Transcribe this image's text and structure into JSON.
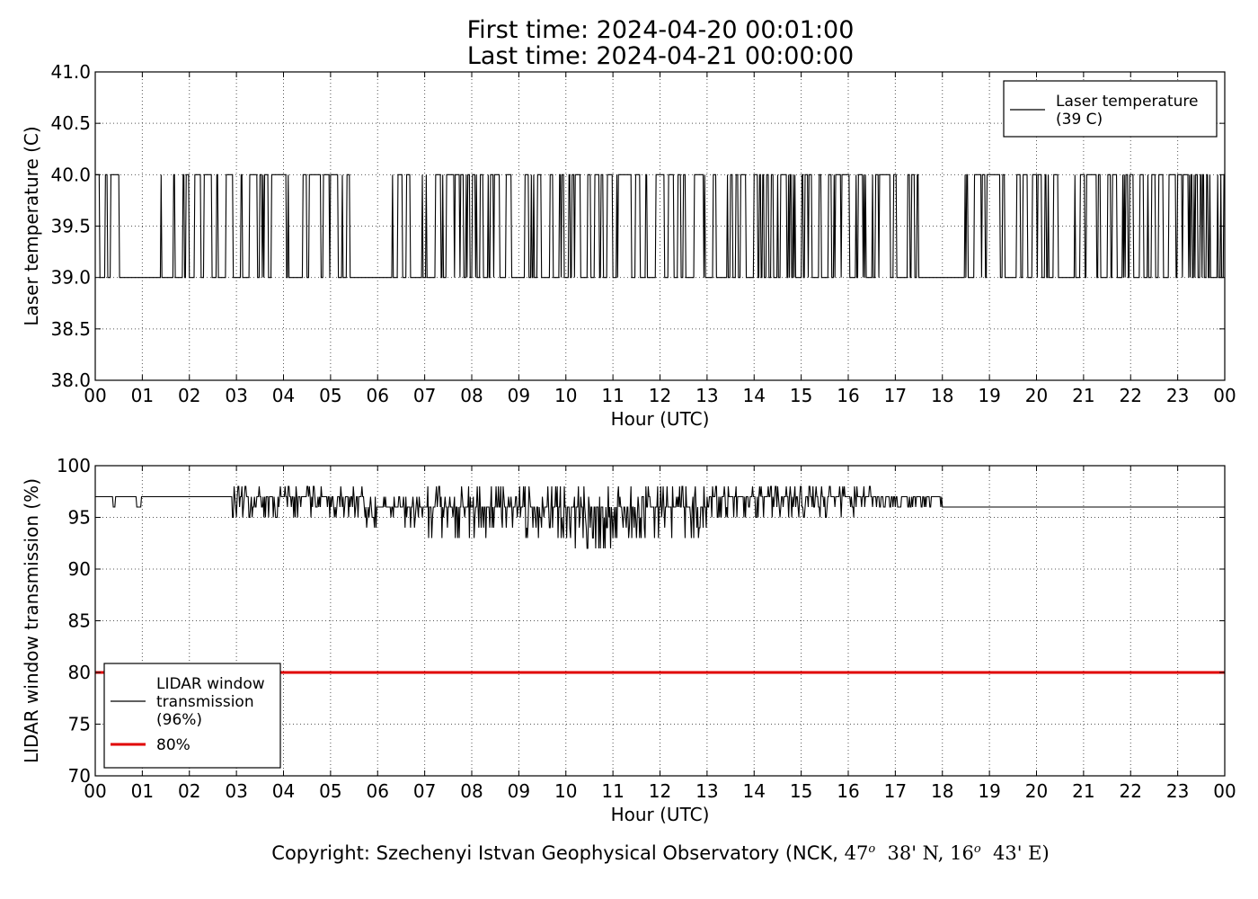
{
  "header": {
    "first_time": "First time: 2024-04-20 00:01:00",
    "last_time": "Last time: 2024-04-21 00:00:00"
  },
  "footer": {
    "copyright_prefix": "Copyright: Szechenyi Istvan Geophysical Observatory (NCK,",
    "lat_deg": "47",
    "lat_min": "38' N,",
    "lon_deg": "16",
    "lon_min": "43' E)",
    "degree_symbol": "o"
  },
  "colors": {
    "line": "#000000",
    "threshold": "#e00000",
    "grid": "#555555"
  },
  "chart_data": [
    {
      "type": "line",
      "xlabel": "Hour (UTC)",
      "ylabel": "Laser temperature (C)",
      "xlim": [
        0,
        24
      ],
      "ylim": [
        38.0,
        41.0
      ],
      "x_tick_labels": [
        "00",
        "01",
        "02",
        "03",
        "04",
        "05",
        "06",
        "07",
        "08",
        "09",
        "10",
        "11",
        "12",
        "13",
        "14",
        "15",
        "16",
        "17",
        "18",
        "19",
        "20",
        "21",
        "22",
        "23",
        "00"
      ],
      "y_ticks": [
        38.0,
        38.5,
        39.0,
        39.5,
        40.0,
        40.5,
        41.0
      ],
      "y_tick_labels": [
        "38.0",
        "38.5",
        "39.0",
        "39.5",
        "40.0",
        "40.5",
        "41.0"
      ],
      "grid": true,
      "legend_position": "top-right",
      "series": [
        {
          "name": "Laser temperature\n(39 C)",
          "legend_lines": [
            "Laser temperature",
            "(39 C)"
          ],
          "color": "#000000",
          "pattern": "alternating 39.0 / 40.0 C",
          "low": 39.0,
          "high": 40.0,
          "flat_low_intervals_hours": [
            [
              0.5,
              1.4
            ],
            [
              5.4,
              6.3
            ],
            [
              17.5,
              18.4
            ]
          ],
          "dense_intervals_hours": [
            [
              0.0,
              0.5
            ],
            [
              1.4,
              5.4
            ],
            [
              6.3,
              17.5
            ],
            [
              18.4,
              24.0
            ]
          ]
        }
      ]
    },
    {
      "type": "line",
      "xlabel": "Hour (UTC)",
      "ylabel": "LIDAR window transmission (%)",
      "xlim": [
        0,
        24
      ],
      "ylim": [
        70,
        100
      ],
      "x_tick_labels": [
        "00",
        "01",
        "02",
        "03",
        "04",
        "05",
        "06",
        "07",
        "08",
        "09",
        "10",
        "11",
        "12",
        "13",
        "14",
        "15",
        "16",
        "17",
        "18",
        "19",
        "20",
        "21",
        "22",
        "23",
        "00"
      ],
      "y_ticks": [
        70,
        75,
        80,
        85,
        90,
        95,
        100
      ],
      "y_tick_labels": [
        "70",
        "75",
        "80",
        "85",
        "90",
        "95",
        "100"
      ],
      "grid": true,
      "legend_position": "lower-left",
      "series": [
        {
          "name": "LIDAR window\ntransmission\n(96%)",
          "legend_lines": [
            "LIDAR window",
            "transmission",
            "(96%)"
          ],
          "color": "#000000",
          "segments": [
            {
              "x_range": [
                0.0,
                2.9
              ],
              "baseline": 97,
              "dips": [
                [
                  0.4,
                  96
                ],
                [
                  0.9,
                  96
                ],
                [
                  0.95,
                  96
                ]
              ]
            },
            {
              "x_range": [
                2.9,
                5.7
              ],
              "min": 95,
              "max": 98
            },
            {
              "x_range": [
                5.7,
                7.0
              ],
              "min": 94,
              "max": 97
            },
            {
              "x_range": [
                7.0,
                10.0
              ],
              "min": 93,
              "max": 98
            },
            {
              "x_range": [
                10.0,
                11.0
              ],
              "min": 92,
              "max": 98
            },
            {
              "x_range": [
                11.0,
                13.0
              ],
              "min": 93,
              "max": 98
            },
            {
              "x_range": [
                13.0,
                16.5
              ],
              "min": 95,
              "max": 98
            },
            {
              "x_range": [
                16.5,
                18.0
              ],
              "min": 96,
              "max": 97
            },
            {
              "x_range": [
                18.0,
                24.0
              ],
              "baseline": 96
            }
          ]
        },
        {
          "name": "80%",
          "legend_lines": [
            "80%"
          ],
          "color": "#e00000",
          "constant": 80
        }
      ]
    }
  ]
}
